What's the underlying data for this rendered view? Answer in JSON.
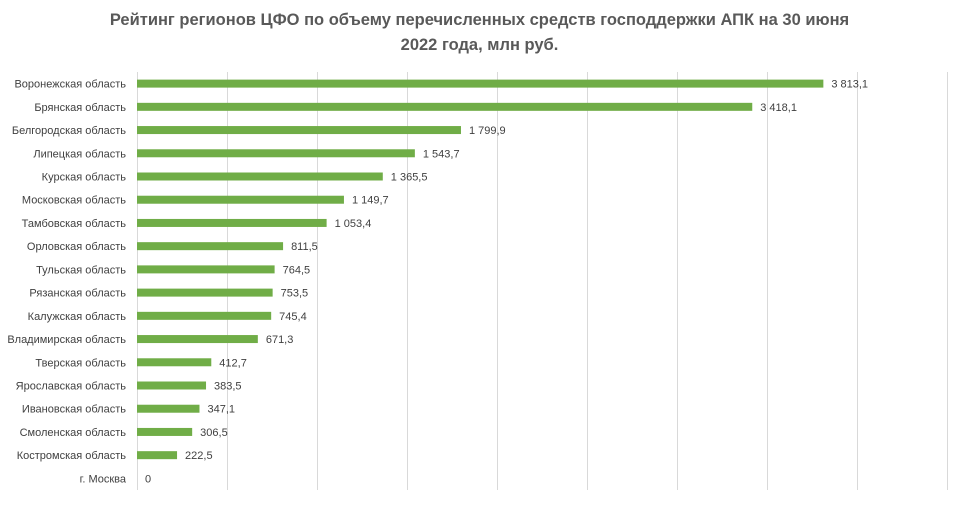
{
  "chart_data": {
    "type": "bar",
    "orientation": "horizontal",
    "title": "Рейтинг регионов ЦФО по объему перечисленных средств господдержки АПК на 30 июня 2022 года, млн руб.",
    "title_lines": [
      "Рейтинг регионов ЦФО по объему перечисленных средств господдержки АПК на 30 июня",
      "2022 года, млн руб."
    ],
    "xlabel": "",
    "ylabel": "",
    "xlim": [
      0,
      4500
    ],
    "grid": true,
    "legend": "none",
    "bar_color": "#70ad47",
    "gridline_color": "#d9d9d9",
    "categories": [
      "Воронежская область",
      "Брянская область",
      "Белгородская область",
      "Липецкая область",
      "Курская область",
      "Московская область",
      "Тамбовская область",
      "Орловская область",
      "Тульская область",
      "Рязанская область",
      "Калужская область",
      "Владимирская область",
      "Тверская область",
      "Ярославская область",
      "Ивановская область",
      "Смоленская область",
      "Костромская область",
      "г. Москва"
    ],
    "values": [
      3813.1,
      3418.1,
      1799.9,
      1543.7,
      1365.5,
      1149.7,
      1053.4,
      811.5,
      764.5,
      753.5,
      745.4,
      671.3,
      412.7,
      383.5,
      347.1,
      306.5,
      222.5,
      0
    ],
    "value_labels": [
      "3 813,1",
      "3 418,1",
      "1 799,9",
      "1 543,7",
      "1 365,5",
      "1 149,7",
      "1 053,4",
      "811,5",
      "764,5",
      "753,5",
      "745,4",
      "671,3",
      "412,7",
      "383,5",
      "347,1",
      "306,5",
      "222,5",
      "0"
    ]
  }
}
